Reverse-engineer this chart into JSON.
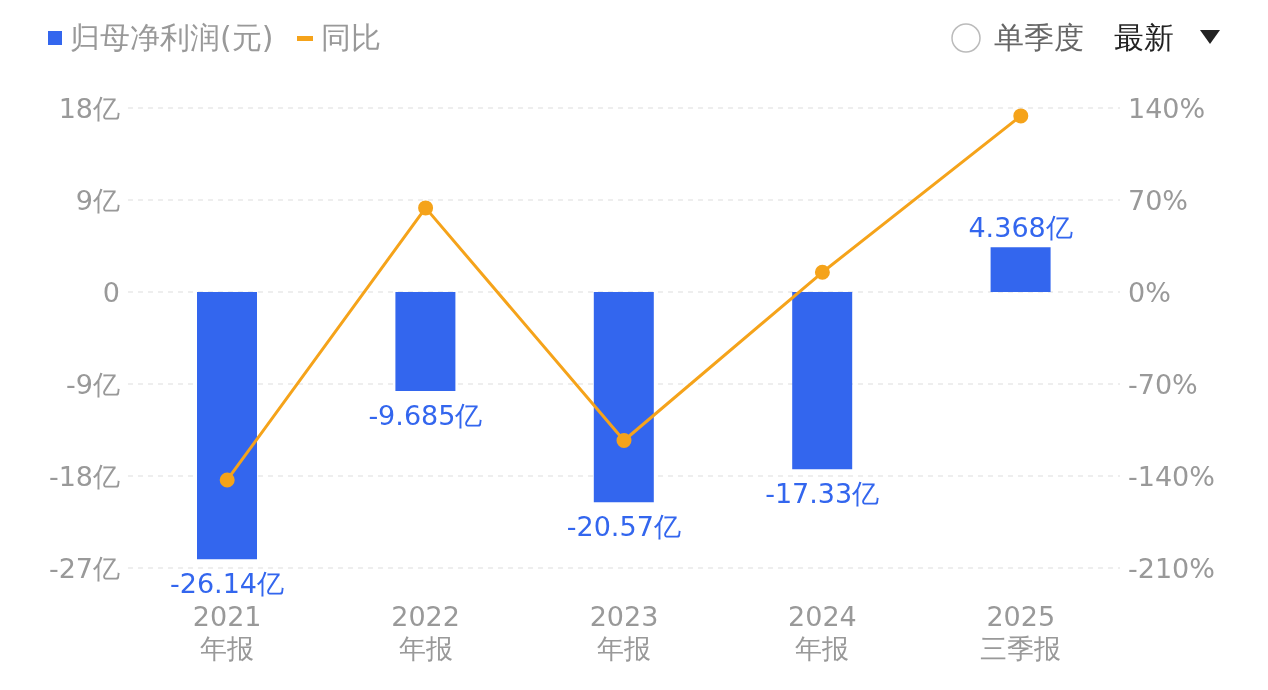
{
  "chart_data": {
    "type": "bar",
    "categories": [
      "2021\n年报",
      "2022\n年报",
      "2023\n年报",
      "2024\n年报",
      "2025\n三季报"
    ],
    "series": [
      {
        "name": "归母净利润(元)",
        "color": "#3366ee",
        "values": [
          -26.14,
          -9.685,
          -20.57,
          -17.33,
          4.368
        ],
        "value_labels": [
          "-26.14亿",
          "-9.685亿",
          "-20.57亿",
          "-17.33亿",
          "4.368亿"
        ]
      },
      {
        "name": "同比",
        "type": "line",
        "axis": "y2",
        "color": "#f5a31a",
        "values": [
          -143,
          64,
          -113,
          15,
          134
        ]
      }
    ],
    "ylim": [
      -27,
      18
    ],
    "yticks": [
      {
        "value": 18,
        "label": "18亿"
      },
      {
        "value": 9,
        "label": "9亿"
      },
      0,
      {
        "value": -9,
        "label": "-9亿"
      },
      {
        "value": -18,
        "label": "-18亿"
      },
      {
        "value": -27,
        "label": "-27亿"
      }
    ],
    "y2lim": [
      -210,
      140
    ],
    "y2ticks": [
      {
        "value": 140,
        "label": "140%"
      },
      {
        "value": 70,
        "label": "70%"
      },
      {
        "value": 0,
        "label": "0%"
      },
      {
        "value": -70,
        "label": "-70%"
      },
      {
        "value": -140,
        "label": "-140%"
      },
      {
        "value": -210,
        "label": "-210%"
      }
    ],
    "annotations": [
      "单季度",
      "最新"
    ],
    "grid": "y",
    "legend": "top left",
    "marker": "circle",
    "line_style": "solid"
  }
}
